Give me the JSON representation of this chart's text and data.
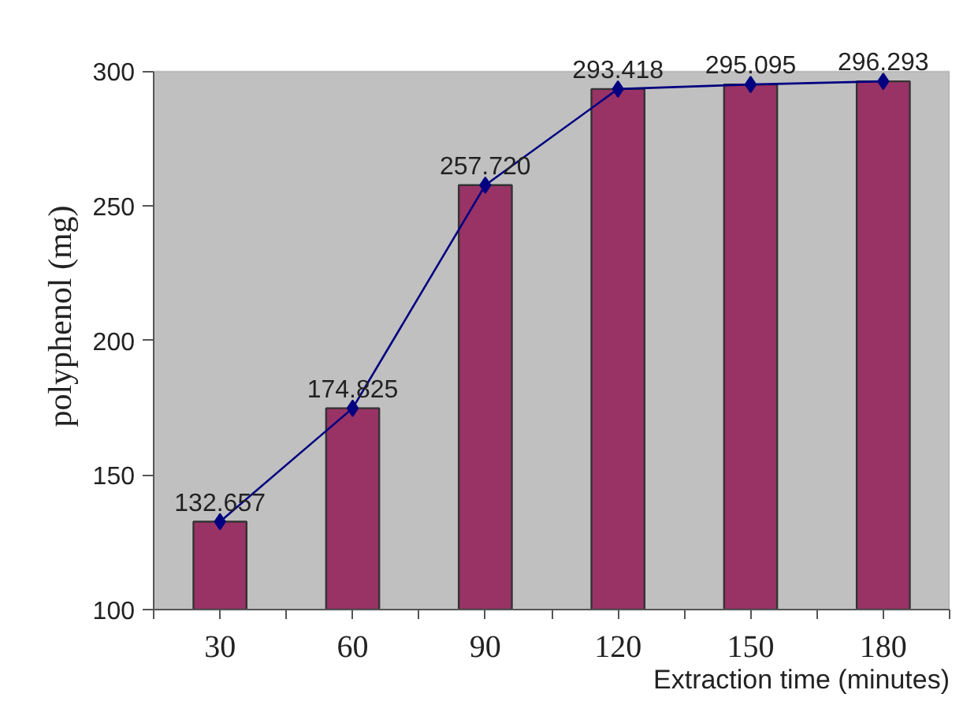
{
  "chart_data": {
    "type": "bar",
    "xlabel": "Extraction time (minutes)",
    "ylabel": "polyphenol (mg)",
    "categories": [
      "30",
      "60",
      "90",
      "120",
      "150",
      "180"
    ],
    "ylim": [
      100,
      300
    ],
    "yticks": [
      100,
      150,
      200,
      250,
      300
    ],
    "series": [
      {
        "color": "#993366",
        "values": [
          132.657,
          174.825,
          257.72,
          293.418,
          295.095,
          296.293
        ]
      },
      {
        "type": "line",
        "color": "#000080",
        "marker": "diamond",
        "line_style": "solid",
        "values": [
          132.657,
          174.825,
          257.72,
          293.418,
          295.095,
          296.293
        ],
        "value_labels": [
          "132.657",
          "174.825",
          "257.720",
          "293.418",
          "295.095",
          "296.293"
        ]
      }
    ]
  }
}
